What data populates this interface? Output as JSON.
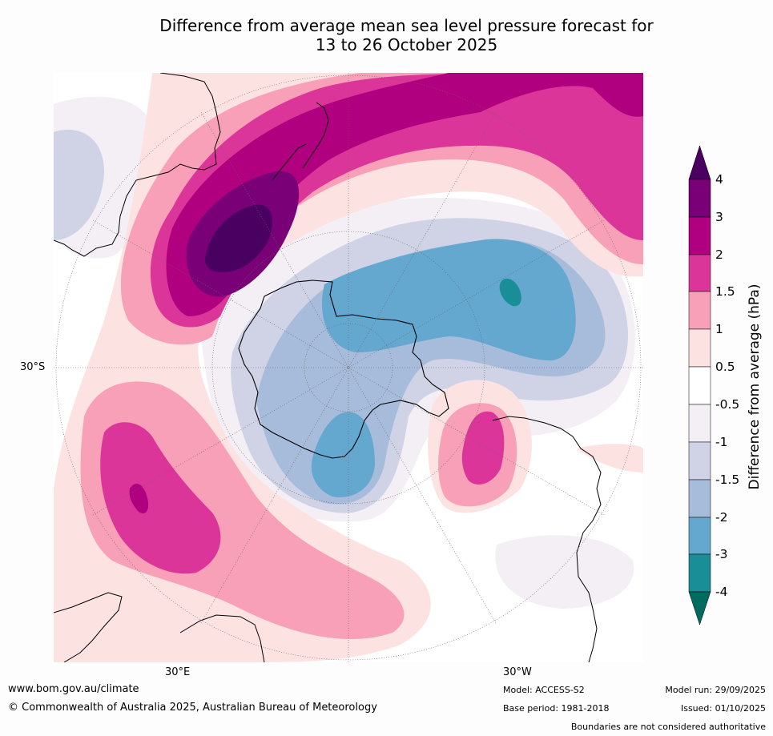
{
  "title": {
    "line1": "Difference from average mean sea level pressure forecast for",
    "line2": "13 to 26 October 2025"
  },
  "map": {
    "projection": "south-polar-stereographic",
    "axis_labels": {
      "left": "30°S",
      "bottom_left": "30°E",
      "bottom_right": "30°W"
    }
  },
  "colorbar": {
    "title": "Difference from average (hPa)",
    "ticks": [
      "4",
      "3",
      "2",
      "1.5",
      "1",
      "0.5",
      "-0.5",
      "-1",
      "-1.5",
      "-2",
      "-3",
      "-4"
    ],
    "colors": {
      "above_4": "#4a0060",
      "3_to_4": "#7a0078",
      "2_to_3": "#b0007f",
      "1_5_to_2": "#dc3599",
      "1_to_1_5": "#f8a0b8",
      "0_5_to_1": "#fde2e2",
      "neutral": "#ffffff",
      "m1_to_m0_5": "#f3eff5",
      "m1_5_to_m1": "#d0d2e5",
      "m2_to_m1_5": "#a7bcda",
      "m3_to_m2": "#64a7cf",
      "m4_to_m3": "#1a8e96",
      "below_m4": "#006b5e"
    }
  },
  "footer": {
    "website": "www.bom.gov.au/climate",
    "copyright": "© Commonwealth of Australia 2025, Australian Bureau of Meteorology",
    "model": "Model: ACCESS-S2",
    "base_period": "Base period: 1981-2018",
    "model_run": "Model run: 29/09/2025",
    "issued": "Issued: 01/10/2025",
    "disclaimer": "Boundaries are not considered authoritative"
  }
}
